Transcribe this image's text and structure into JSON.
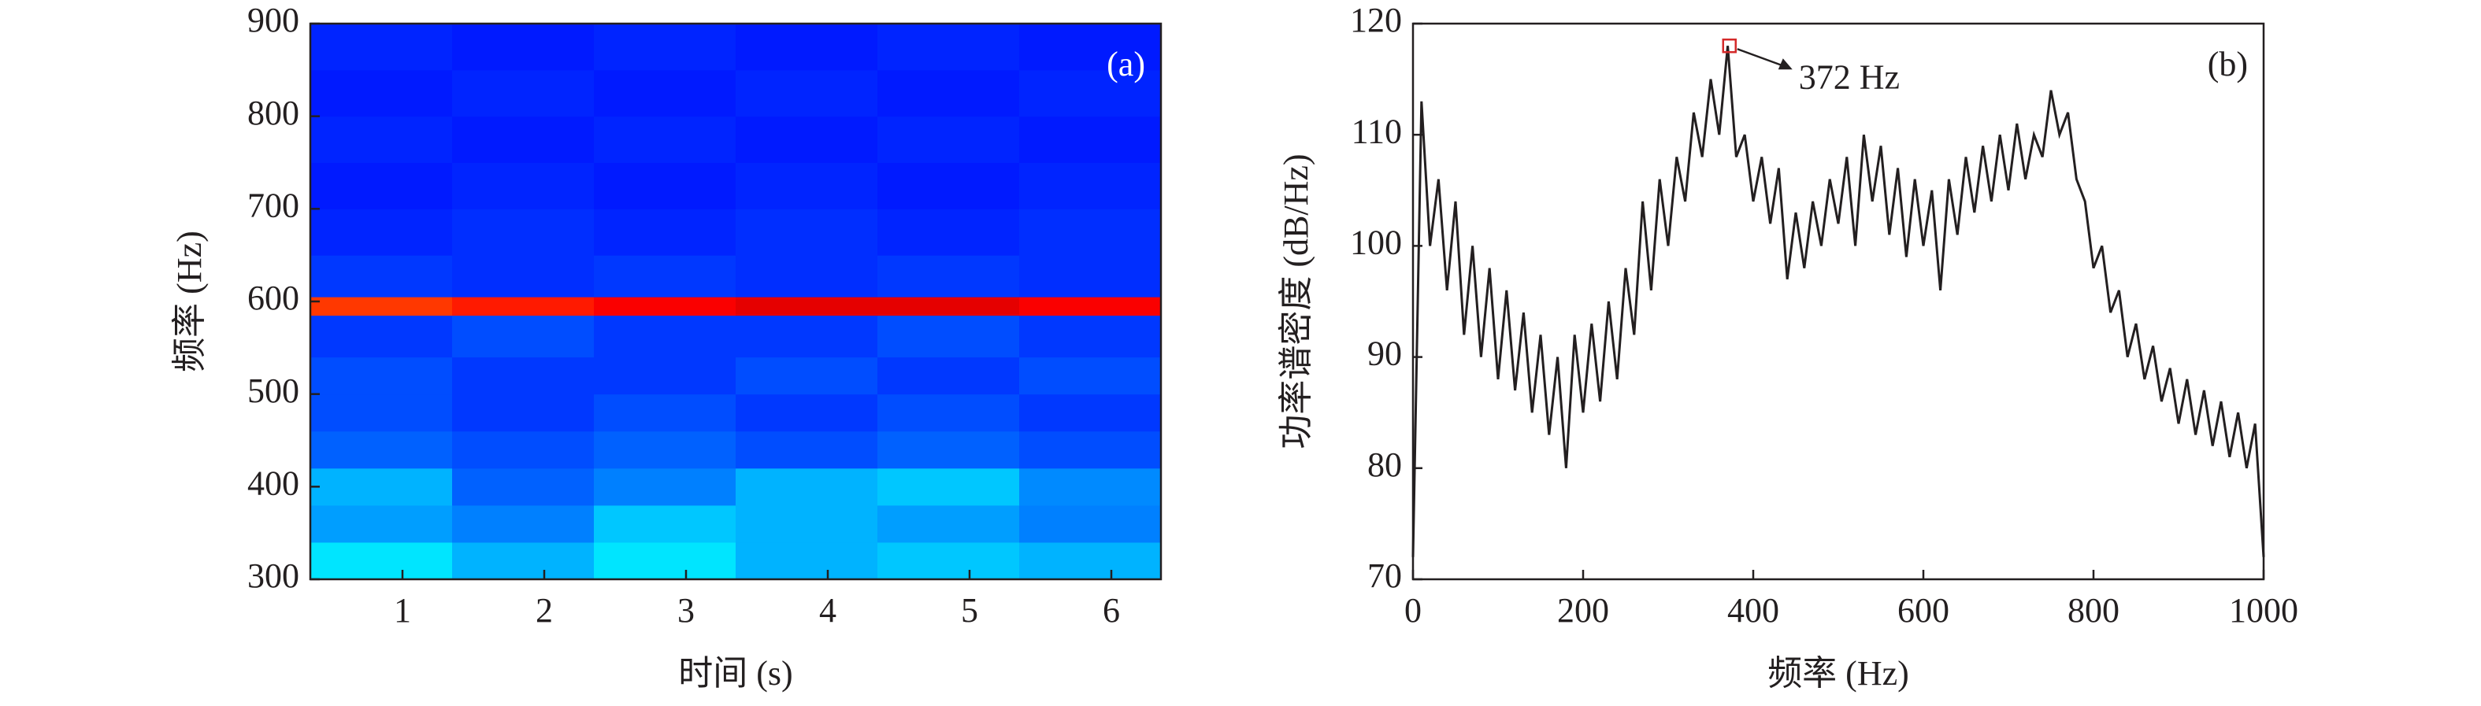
{
  "chart_data": [
    {
      "type": "heatmap",
      "panel_label": "(a)",
      "xlabel": "时间 (s)",
      "ylabel": "频率 (Hz)",
      "x_bins": [
        0.35,
        1.35,
        2.35,
        3.35,
        4.35,
        5.35,
        6.35
      ],
      "y_bins": [
        300,
        340,
        380,
        420,
        460,
        500,
        540,
        585,
        605,
        650,
        700,
        750,
        800,
        850,
        900
      ],
      "values": [
        [
          0.35,
          0.3,
          0.35,
          0.3,
          0.32,
          0.3
        ],
        [
          0.28,
          0.25,
          0.32,
          0.3,
          0.28,
          0.25
        ],
        [
          0.3,
          0.22,
          0.25,
          0.3,
          0.32,
          0.26
        ],
        [
          0.22,
          0.2,
          0.22,
          0.2,
          0.22,
          0.2
        ],
        [
          0.2,
          0.18,
          0.2,
          0.18,
          0.2,
          0.18
        ],
        [
          0.2,
          0.18,
          0.18,
          0.2,
          0.18,
          0.2
        ],
        [
          0.18,
          0.2,
          0.18,
          0.18,
          0.2,
          0.18
        ],
        [
          0.82,
          0.85,
          0.88,
          0.9,
          0.9,
          0.88
        ],
        [
          0.18,
          0.17,
          0.18,
          0.17,
          0.18,
          0.17
        ],
        [
          0.16,
          0.17,
          0.16,
          0.17,
          0.16,
          0.17
        ],
        [
          0.15,
          0.16,
          0.15,
          0.16,
          0.15,
          0.16
        ],
        [
          0.16,
          0.15,
          0.16,
          0.15,
          0.16,
          0.15
        ],
        [
          0.15,
          0.16,
          0.15,
          0.16,
          0.15,
          0.16
        ],
        [
          0.16,
          0.15,
          0.16,
          0.15,
          0.16,
          0.15
        ]
      ],
      "xlim": [
        0.35,
        6.35
      ],
      "xticks": [
        1,
        2,
        3,
        4,
        5,
        6
      ],
      "ylim": [
        300,
        900
      ],
      "yticks": [
        300,
        400,
        500,
        600,
        700,
        800,
        900
      ]
    },
    {
      "type": "line",
      "panel_label": "(b)",
      "xlabel": "频率 (Hz)",
      "ylabel": "功率谱密度 (dB/Hz)",
      "color": "#231f20",
      "x": [
        0,
        10,
        20,
        30,
        40,
        50,
        60,
        70,
        80,
        90,
        100,
        110,
        120,
        130,
        140,
        150,
        160,
        170,
        180,
        190,
        200,
        210,
        220,
        230,
        240,
        250,
        260,
        270,
        280,
        290,
        300,
        310,
        320,
        330,
        340,
        350,
        360,
        370,
        380,
        390,
        400,
        410,
        420,
        430,
        440,
        450,
        460,
        470,
        480,
        490,
        500,
        510,
        520,
        530,
        540,
        550,
        560,
        570,
        580,
        590,
        600,
        610,
        620,
        630,
        640,
        650,
        660,
        670,
        680,
        690,
        700,
        710,
        720,
        730,
        740,
        750,
        760,
        770,
        780,
        790,
        800,
        810,
        820,
        830,
        840,
        850,
        860,
        870,
        880,
        890,
        900,
        910,
        920,
        930,
        940,
        950,
        960,
        970,
        980,
        990,
        1000
      ],
      "values": [
        72,
        113,
        100,
        106,
        96,
        104,
        92,
        100,
        90,
        98,
        88,
        96,
        87,
        94,
        85,
        92,
        83,
        90,
        80,
        92,
        85,
        93,
        86,
        95,
        88,
        98,
        92,
        104,
        96,
        106,
        100,
        108,
        104,
        112,
        108,
        115,
        110,
        118,
        108,
        110,
        104,
        108,
        102,
        107,
        97,
        103,
        98,
        104,
        100,
        106,
        102,
        108,
        100,
        110,
        104,
        109,
        101,
        107,
        99,
        106,
        100,
        105,
        96,
        106,
        101,
        108,
        103,
        109,
        104,
        110,
        105,
        111,
        106,
        110,
        108,
        114,
        110,
        112,
        106,
        104,
        98,
        100,
        94,
        96,
        90,
        93,
        88,
        91,
        86,
        89,
        84,
        88,
        83,
        87,
        82,
        86,
        81,
        85,
        80,
        84,
        72
      ],
      "annotation": {
        "text": "372 Hz",
        "x": 372,
        "y": 118
      },
      "xlim": [
        0,
        1000
      ],
      "xticks": [
        0,
        200,
        400,
        600,
        800,
        1000
      ],
      "ylim": [
        70,
        120
      ],
      "yticks": [
        70,
        80,
        90,
        100,
        110,
        120
      ]
    }
  ]
}
